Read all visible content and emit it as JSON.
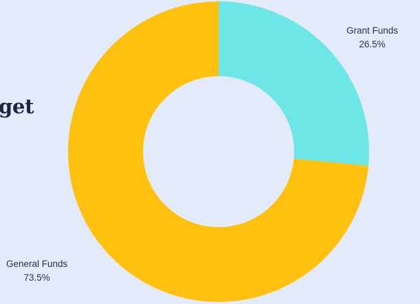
{
  "chart_data": {
    "type": "pie",
    "variant": "donut",
    "title": "",
    "partial_heading_text": "get",
    "slices": [
      {
        "label": "Grant Funds",
        "value": 26.5,
        "display": "26.5%",
        "color": "#6ee6e8"
      },
      {
        "label": "General Funds",
        "value": 73.5,
        "display": "73.5%",
        "color": "#ffc00f"
      }
    ],
    "start_angle_deg": 0,
    "direction": "clockwise",
    "legend": "none"
  }
}
